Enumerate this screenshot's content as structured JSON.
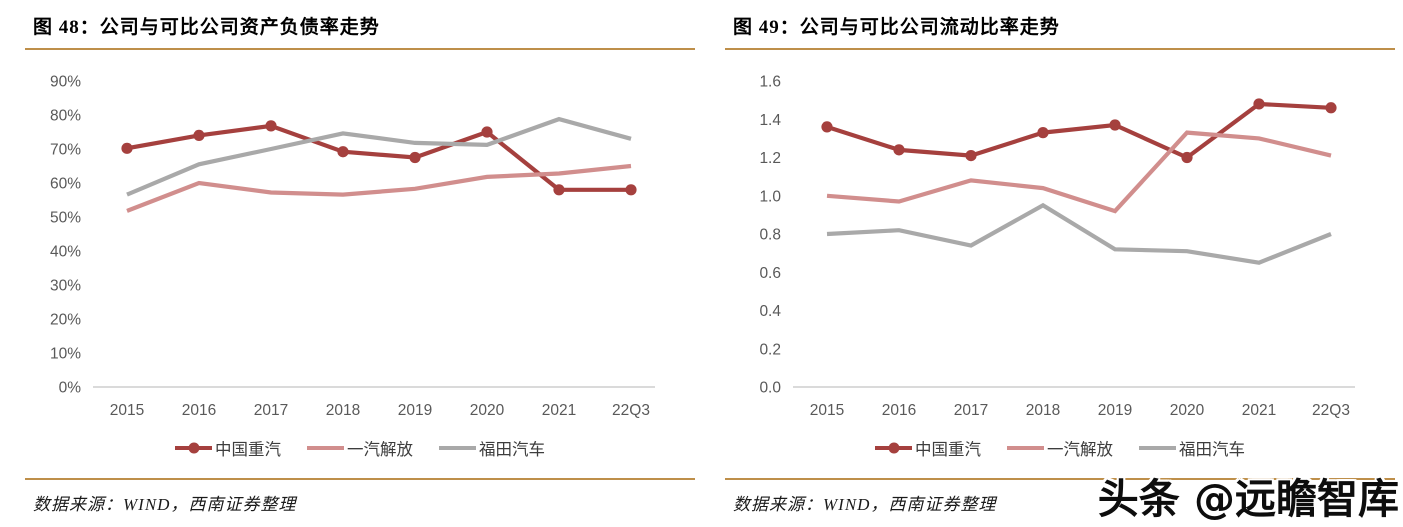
{
  "page": {
    "watermark": "头条 @远瞻智库",
    "colors": {
      "accent_rule": "#BE8F4A",
      "axis_text": "#595959",
      "axis_line": "#CDCDCD",
      "series_sinotruk": "#A5403E",
      "series_faw": "#D18E8D",
      "series_foton": "#A9A9A9"
    }
  },
  "chart_data": [
    {
      "type": "line",
      "title": "图 48：公司与可比公司资产负债率走势",
      "source": "数据来源：WIND，西南证券整理",
      "categories": [
        "2015",
        "2016",
        "2017",
        "2018",
        "2019",
        "2020",
        "2021",
        "22Q3"
      ],
      "series": [
        {
          "name": "中国重汽",
          "color": "#A5403E",
          "marker": true,
          "values": [
            70.2,
            74.0,
            76.8,
            69.2,
            67.5,
            75.0,
            58.0,
            58.0
          ]
        },
        {
          "name": "一汽解放",
          "color": "#D18E8D",
          "marker": false,
          "values": [
            51.8,
            60.0,
            57.2,
            56.6,
            58.3,
            61.8,
            62.8,
            65.0
          ]
        },
        {
          "name": "福田汽车",
          "color": "#A9A9A9",
          "marker": false,
          "values": [
            56.6,
            65.5,
            70.0,
            74.6,
            71.8,
            71.2,
            78.8,
            73.0
          ]
        }
      ],
      "xlabel": "",
      "ylabel": "",
      "ylim": [
        0,
        90
      ],
      "ytick_step": 10,
      "ytick_format": "percent",
      "grid": false,
      "legend_position": "bottom"
    },
    {
      "type": "line",
      "title": "图 49：公司与可比公司流动比率走势",
      "source": "数据来源：WIND，西南证券整理",
      "categories": [
        "2015",
        "2016",
        "2017",
        "2018",
        "2019",
        "2020",
        "2021",
        "22Q3"
      ],
      "series": [
        {
          "name": "中国重汽",
          "color": "#A5403E",
          "marker": true,
          "values": [
            1.36,
            1.24,
            1.21,
            1.33,
            1.37,
            1.2,
            1.48,
            1.46
          ]
        },
        {
          "name": "一汽解放",
          "color": "#D18E8D",
          "marker": false,
          "values": [
            1.0,
            0.97,
            1.08,
            1.04,
            0.92,
            1.33,
            1.3,
            1.21
          ]
        },
        {
          "name": "福田汽车",
          "color": "#A9A9A9",
          "marker": false,
          "values": [
            0.8,
            0.82,
            0.74,
            0.95,
            0.72,
            0.71,
            0.65,
            0.8
          ]
        }
      ],
      "xlabel": "",
      "ylabel": "",
      "ylim": [
        0,
        1.6
      ],
      "ytick_step": 0.2,
      "ytick_format": "decimal1",
      "grid": false,
      "legend_position": "bottom"
    }
  ]
}
